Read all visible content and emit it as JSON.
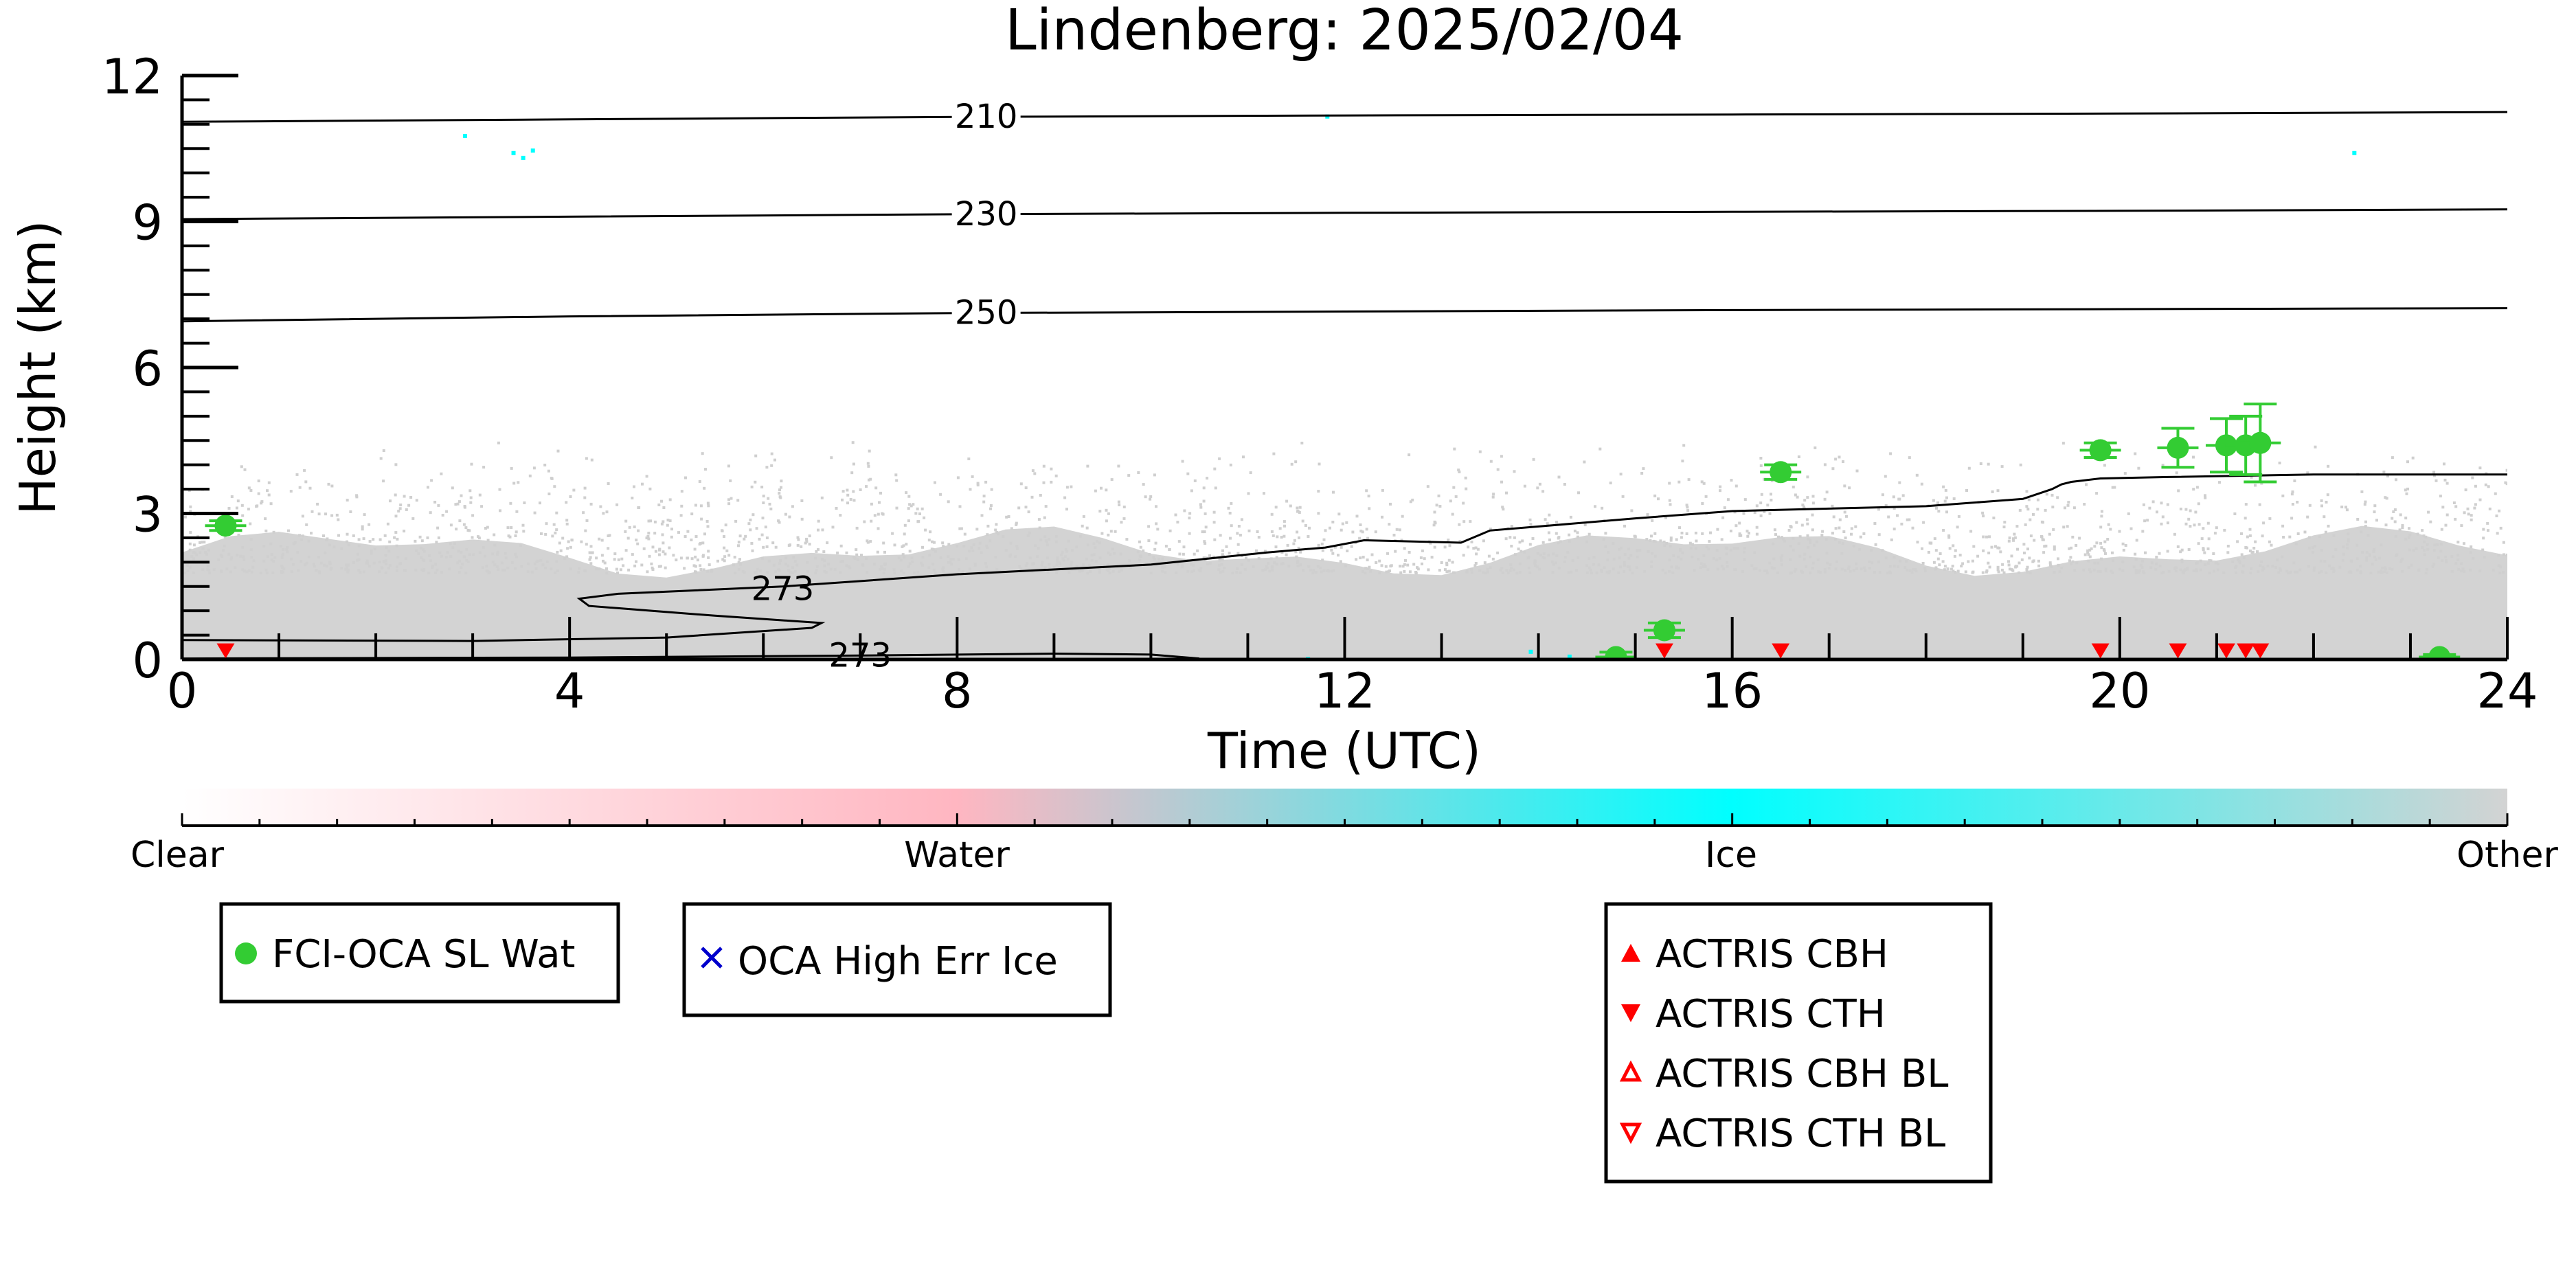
{
  "chart_data": {
    "type": "scatter",
    "title": "Lindenberg: 2025/02/04",
    "xlabel": "Time (UTC)",
    "ylabel": "Height (km)",
    "xlim": [
      0,
      24
    ],
    "ylim": [
      0,
      12
    ],
    "xticks": [
      0,
      4,
      8,
      12,
      16,
      20,
      24
    ],
    "yticks": [
      0,
      3,
      6,
      9,
      12
    ],
    "grid": false,
    "colorbar": {
      "labels": [
        "Clear",
        "Water",
        "Ice",
        "Other"
      ],
      "colors": {
        "clear": "#ffffff",
        "water": "#ffb6c1",
        "ice": "#00ffff",
        "other": "#d3d3d3"
      }
    },
    "contours": [
      {
        "label": "210",
        "x": [
          0,
          4,
          8,
          12,
          16,
          20,
          24
        ],
        "y": [
          11.05,
          11.1,
          11.15,
          11.18,
          11.2,
          11.22,
          11.25
        ]
      },
      {
        "label": "230",
        "x": [
          0,
          4,
          8,
          12,
          16,
          20,
          24
        ],
        "y": [
          9.05,
          9.1,
          9.15,
          9.18,
          9.2,
          9.22,
          9.25
        ]
      },
      {
        "label": "250",
        "x": [
          0,
          4,
          8,
          12,
          16,
          20,
          24
        ],
        "y": [
          6.95,
          7.05,
          7.12,
          7.15,
          7.18,
          7.2,
          7.22
        ]
      },
      {
        "label": "273",
        "x": [
          0,
          3,
          5,
          6.5,
          6.6,
          5.5,
          4.2,
          4.1,
          4.5,
          6.2,
          8,
          10,
          11.2,
          11.8,
          12.2,
          13.2,
          13.5,
          15,
          16,
          17,
          18,
          19,
          19.3,
          19.4,
          19.5,
          19.8,
          20.5,
          22,
          24
        ],
        "y": [
          0.4,
          0.38,
          0.45,
          0.65,
          0.75,
          0.9,
          1.1,
          1.25,
          1.35,
          1.5,
          1.75,
          1.95,
          2.2,
          2.3,
          2.45,
          2.4,
          2.65,
          2.9,
          3.05,
          3.1,
          3.15,
          3.3,
          3.5,
          3.6,
          3.65,
          3.72,
          3.75,
          3.8,
          3.8
        ]
      },
      {
        "label": "273",
        "x": [
          0,
          4,
          7,
          9,
          10,
          10.5
        ],
        "y": [
          0.02,
          0.04,
          0.08,
          0.12,
          0.1,
          0.02
        ]
      }
    ],
    "series": [
      {
        "name": "FCI-OCA SL Wat",
        "marker": "circle",
        "color": "#33cc33",
        "x": [
          0.45,
          14.8,
          15.3,
          16.5,
          19.8,
          20.6,
          21.1,
          21.3,
          21.45,
          23.3
        ],
        "y": [
          2.75,
          0.05,
          0.6,
          3.85,
          4.3,
          4.35,
          4.4,
          4.4,
          4.45,
          0.05
        ],
        "err": [
          0.1,
          0.1,
          0.15,
          0.15,
          0.15,
          0.4,
          0.55,
          0.6,
          0.8,
          0.05
        ]
      },
      {
        "name": "OCA High Err Ice",
        "marker": "x",
        "color": "#0000cc",
        "x": [],
        "y": []
      },
      {
        "name": "ACTRIS CBH",
        "marker": "triangle-up",
        "color": "#ff0000",
        "x": [],
        "y": []
      },
      {
        "name": "ACTRIS CTH",
        "marker": "triangle-down",
        "color": "#ff0000",
        "x": [
          0.45,
          15.3,
          16.5,
          19.8,
          20.6,
          21.1,
          21.3,
          21.45
        ],
        "y": [
          0.02,
          0.02,
          0.02,
          0.02,
          0.02,
          0.02,
          0.02,
          0.02
        ]
      },
      {
        "name": "ACTRIS CBH BL",
        "marker": "triangle-up-open",
        "color": "#ff0000",
        "x": [],
        "y": []
      },
      {
        "name": "ACTRIS CTH BL",
        "marker": "triangle-down-open",
        "color": "#ff0000",
        "x": [],
        "y": []
      }
    ],
    "legend_placement": "below"
  }
}
